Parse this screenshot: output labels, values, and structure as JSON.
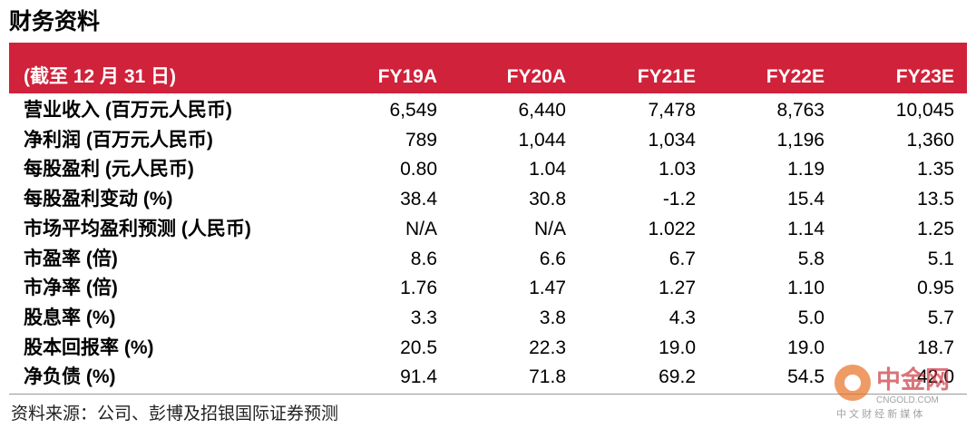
{
  "header": {
    "title": "财务资料"
  },
  "table": {
    "columns": [
      "(截至 12 月 31 日)",
      "FY19A",
      "FY20A",
      "FY21E",
      "FY22E",
      "FY23E"
    ],
    "rows": [
      [
        "营业收入 (百万元人民币)",
        "6,549",
        "6,440",
        "7,478",
        "8,763",
        "10,045"
      ],
      [
        "净利润 (百万元人民币)",
        "789",
        "1,044",
        "1,034",
        "1,196",
        "1,360"
      ],
      [
        "每股盈利 (元人民币)",
        "0.80",
        "1.04",
        "1.03",
        "1.19",
        "1.35"
      ],
      [
        "每股盈利变动 (%)",
        "38.4",
        "30.8",
        "-1.2",
        "15.4",
        "13.5"
      ],
      [
        "市场平均盈利预测 (人民币)",
        "N/A",
        "N/A",
        "1.022",
        "1.14",
        "1.25"
      ],
      [
        "市盈率 (倍)",
        "8.6",
        "6.6",
        "6.7",
        "5.8",
        "5.1"
      ],
      [
        "市净率 (倍)",
        "1.76",
        "1.47",
        "1.27",
        "1.10",
        "0.95"
      ],
      [
        "股息率 (%)",
        "3.3",
        "3.8",
        "4.3",
        "5.0",
        "5.7"
      ],
      [
        "股本回报率 (%)",
        "20.5",
        "22.3",
        "19.0",
        "19.0",
        "18.7"
      ],
      [
        "净负债 (%)",
        "91.4",
        "71.8",
        "69.2",
        "54.5",
        "42.0"
      ]
    ]
  },
  "source": "资料来源：公司、彭博及招银国际证券预测",
  "watermark": {
    "name": "中金网",
    "domain": "CNGOLD.COM",
    "tagline": "中 文 财 经 新 媒 体"
  }
}
